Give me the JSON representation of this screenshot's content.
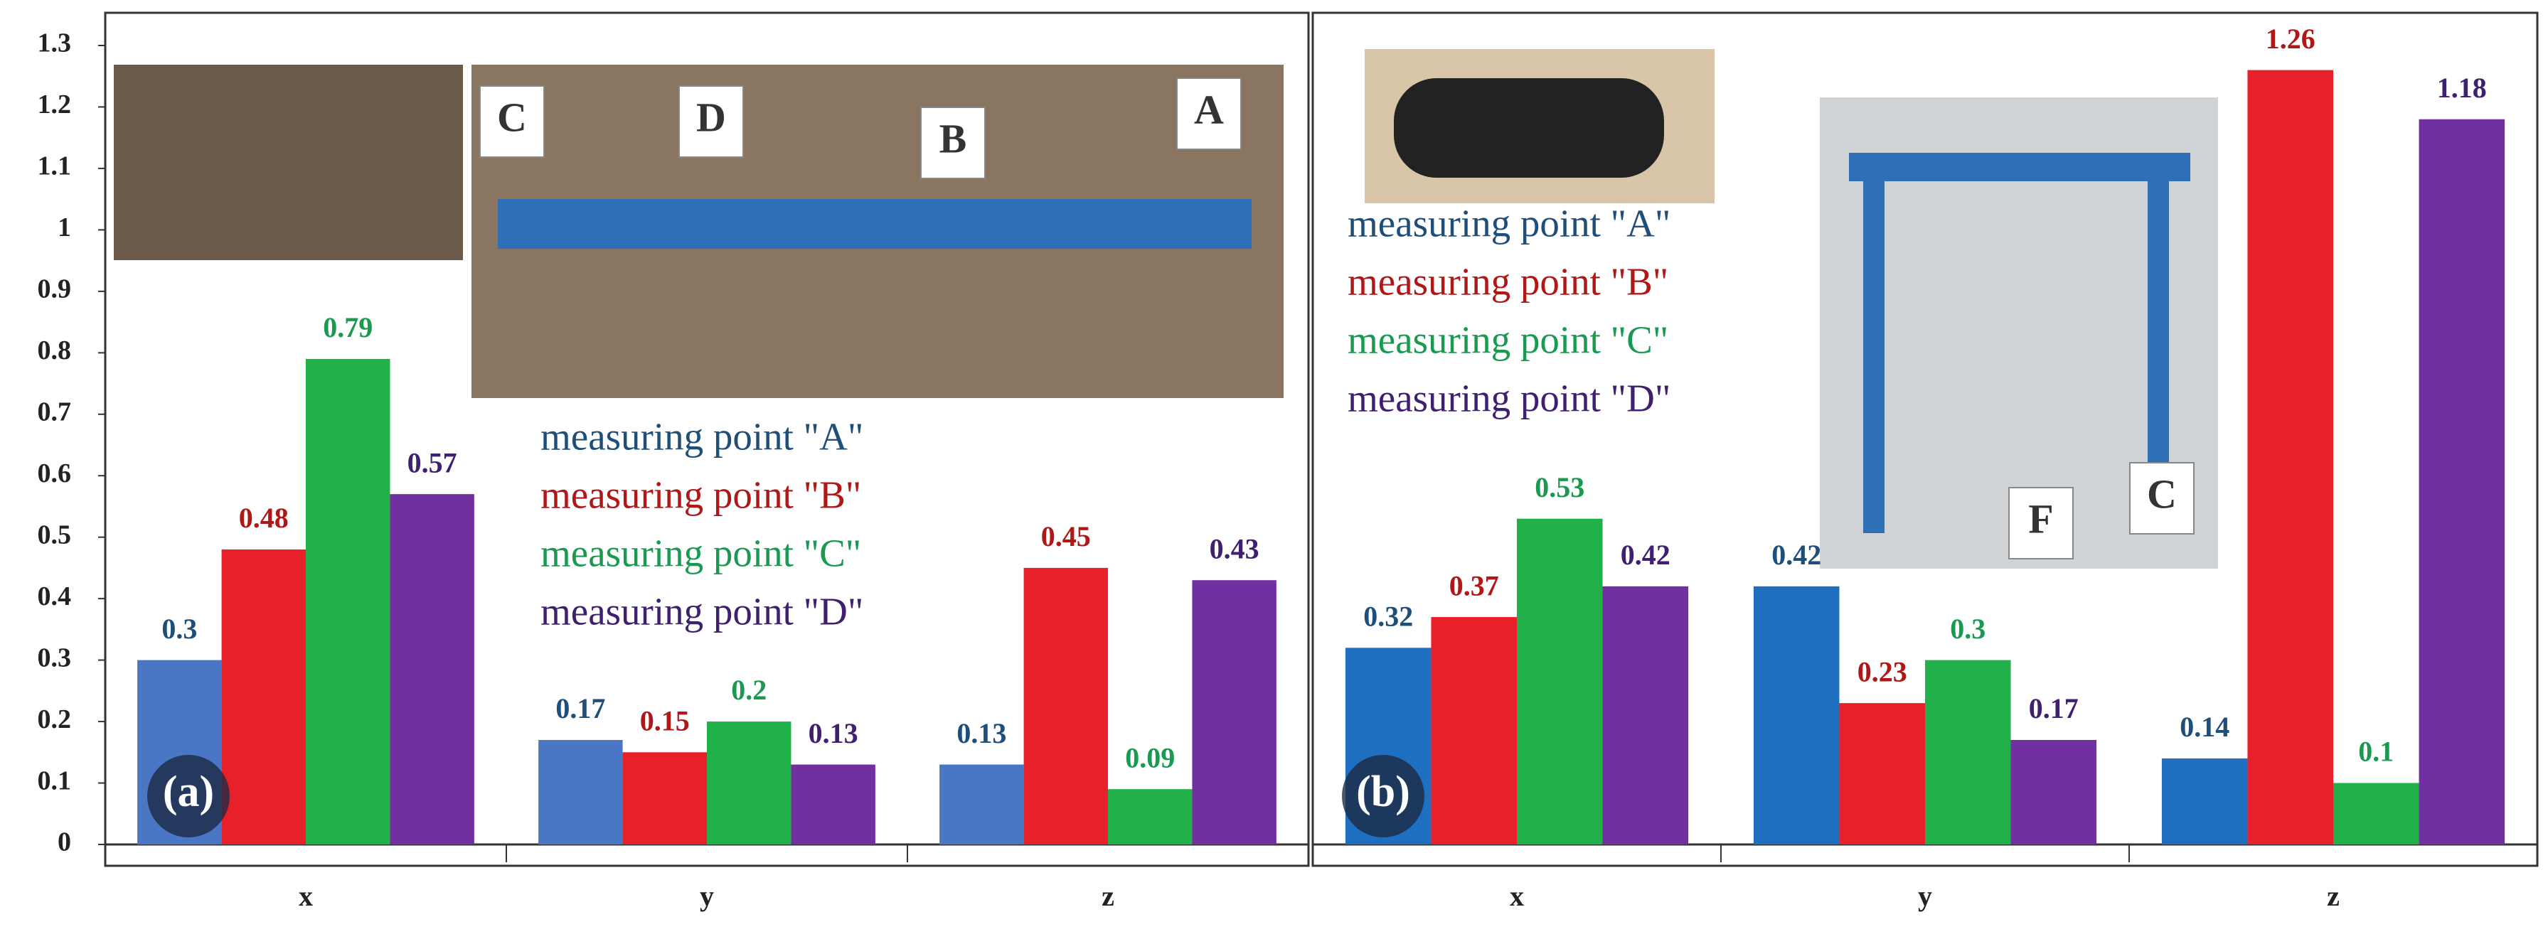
{
  "chart_data": [
    {
      "type": "bar",
      "label": "(a)",
      "categories": [
        "x",
        "y",
        "z"
      ],
      "series": [
        {
          "name": "measuring point \"A\"",
          "color": "#4a76c6",
          "label_color": "#1f4e79",
          "values": [
            0.3,
            0.17,
            0.13
          ]
        },
        {
          "name": "measuring point \"B\"",
          "color": "#e8202a",
          "label_color": "#b01818",
          "values": [
            0.48,
            0.15,
            0.45
          ]
        },
        {
          "name": "measuring point \"C\"",
          "color": "#22b04b",
          "label_color": "#1a9a50",
          "values": [
            0.79,
            0.2,
            0.09
          ]
        },
        {
          "name": "measuring point \"D\"",
          "color": "#7030a0",
          "label_color": "#3f1f6f",
          "values": [
            0.57,
            0.13,
            0.43
          ]
        }
      ],
      "ylim": [
        0,
        1.3
      ],
      "yticks": [
        0,
        0.1,
        0.2,
        0.3,
        0.4,
        0.5,
        0.6,
        0.7,
        0.8,
        0.9,
        1,
        1.1,
        1.2,
        1.3
      ],
      "annotations": [
        "C",
        "D",
        "B",
        "A"
      ]
    },
    {
      "type": "bar",
      "label": "(b)",
      "categories": [
        "x",
        "y",
        "z"
      ],
      "series": [
        {
          "name": "measuring point \"A\"",
          "color": "#1f6fc0",
          "label_color": "#1f4e79",
          "values": [
            0.32,
            0.42,
            0.14
          ]
        },
        {
          "name": "measuring point \"B\"",
          "color": "#e8202a",
          "label_color": "#b01818",
          "values": [
            0.37,
            0.23,
            1.26
          ]
        },
        {
          "name": "measuring point \"C\"",
          "color": "#22b04b",
          "label_color": "#1a9a50",
          "values": [
            0.53,
            0.3,
            0.1
          ]
        },
        {
          "name": "measuring point \"D\"",
          "color": "#7030a0",
          "label_color": "#3f1f6f",
          "values": [
            0.42,
            0.17,
            1.18
          ]
        }
      ],
      "ylim": [
        0,
        1.3
      ],
      "annotations": [
        "F",
        "C"
      ]
    }
  ]
}
